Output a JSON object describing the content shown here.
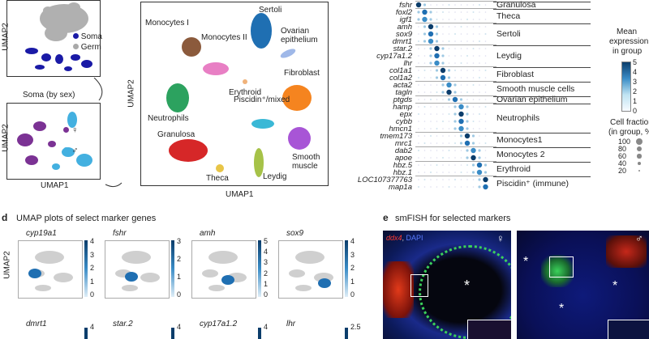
{
  "panel_a": {
    "ylabel": "UMAP2",
    "legend": [
      {
        "label": "Soma",
        "color": "#1a1aa6"
      },
      {
        "label": "Germ",
        "color": "#a9a9a9"
      }
    ],
    "inset_title": "Soma (by sex)",
    "inset_ylabel": "UMAP2",
    "inset_xlabel": "UMAP1",
    "sex_legend": [
      {
        "symbol": "♀",
        "color": "#7b3294"
      },
      {
        "symbol": "♂",
        "color": "#43b0e0"
      }
    ]
  },
  "panel_b": {
    "ylabel": "UMAP2",
    "xlabel": "UMAP1",
    "clusters": [
      {
        "label": "Monocytes I",
        "color": "#8b5a3c"
      },
      {
        "label": "Monocytes II",
        "color": "#e87fc4"
      },
      {
        "label": "Sertoli",
        "color": "#1f6fb2"
      },
      {
        "label": "Ovarian epithelium",
        "color": "#9fb8e8"
      },
      {
        "label": "Erythroid",
        "color": "#f0b27a"
      },
      {
        "label": "Fibroblast",
        "color": "#f5841f"
      },
      {
        "label": "Neutrophils",
        "color": "#2ca25f"
      },
      {
        "label": "Piscidin⁺/mixed",
        "color": "#3ab8d6"
      },
      {
        "label": "Granulosa",
        "color": "#d62728"
      },
      {
        "label": "Smooth muscle",
        "color": "#a855d6"
      },
      {
        "label": "Theca",
        "color": "#e8c547"
      },
      {
        "label": "Leydig",
        "color": "#a6c248"
      }
    ]
  },
  "panel_c": {
    "genes": [
      "fshr",
      "foxl2",
      "igf1",
      "amh",
      "sox9",
      "dmrt1",
      "star.2",
      "cyp17a1.2",
      "lhr",
      "col1a1",
      "col1a2",
      "acta2",
      "tagln",
      "ptgds",
      "hamp",
      "epx",
      "cybb",
      "hmcn1",
      "tmem173",
      "mrc1",
      "dab2",
      "apoe",
      "hbz.5",
      "hbz.1",
      "LOC107377763",
      "map1a"
    ],
    "groups": [
      "Granulosa",
      "Theca",
      "Sertoli",
      "Leydig",
      "Fibroblast",
      "Smooth muscle cells",
      "Ovarian epithelium",
      "Neutrophils",
      "Monocytes1",
      "Monocytes 2",
      "Erythroid",
      "Piscidin⁺ (immune)"
    ],
    "colorbar": {
      "title_line1": "Mean",
      "title_line2": "expression",
      "title_line3": "in group",
      "ticks": [
        "5",
        "4",
        "3",
        "2",
        "1",
        "0"
      ]
    },
    "size_legend": {
      "title_line1": "Cell fraction",
      "title_line2": "(in group, %)",
      "items": [
        "100",
        "80",
        "60",
        "40",
        "20"
      ]
    }
  },
  "panel_d": {
    "letter": "d",
    "title": "UMAP plots of select marker genes",
    "ylabel": "UMAP2",
    "plots": [
      {
        "gene": "cyp19a1",
        "ticks": [
          "4",
          "3",
          "2",
          "1",
          "0"
        ]
      },
      {
        "gene": "fshr",
        "ticks": [
          "3",
          "2",
          "1",
          "0"
        ]
      },
      {
        "gene": "amh",
        "ticks": [
          "5",
          "4",
          "3",
          "2",
          "1",
          "0"
        ]
      },
      {
        "gene": "sox9",
        "ticks": [
          "4",
          "3",
          "2",
          "1",
          "0"
        ]
      },
      {
        "gene": "dmrt1",
        "ticks": [
          "4"
        ]
      },
      {
        "gene": "star.2",
        "ticks": [
          "4"
        ]
      },
      {
        "gene": "cyp17a1.2",
        "ticks": [
          "4"
        ]
      },
      {
        "gene": "lhr",
        "ticks": [
          "2.5"
        ]
      }
    ]
  },
  "panel_e": {
    "letter": "e",
    "title": "smFISH for selected markers",
    "stain1": "ddx4",
    "stain_sep": ", ",
    "stain2": "DAPI",
    "female_symbol": "♀",
    "male_symbol": "♂",
    "asterisk": "*"
  },
  "colors": {
    "accent": "#0b5a8c",
    "soma": "#1a1aa6",
    "germ": "#a9a9a9"
  }
}
